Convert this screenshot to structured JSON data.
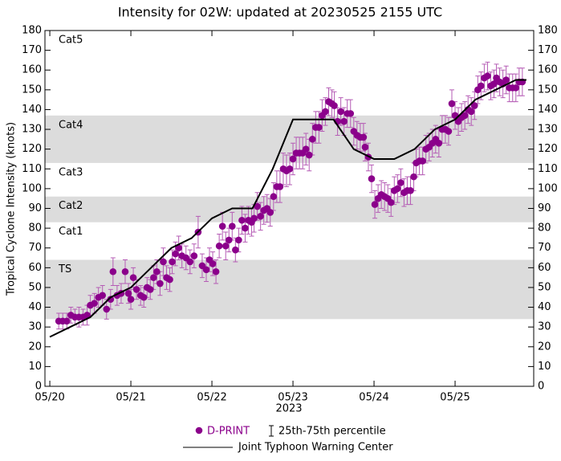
{
  "chart_data": {
    "type": "scatter",
    "title": "Intensity for 02W: updated at 20230525 2155 UTC",
    "xlabel": "2023",
    "ylabel": "Tropical Cyclone Intensity (knots)",
    "xlim": [
      -0.06,
      5.97
    ],
    "xticks": [
      {
        "value": 0,
        "label": "05/20"
      },
      {
        "value": 1,
        "label": "05/21"
      },
      {
        "value": 2,
        "label": "05/22"
      },
      {
        "value": 3,
        "label": "05/23"
      },
      {
        "value": 4,
        "label": "05/24"
      },
      {
        "value": 5,
        "label": "05/25"
      }
    ],
    "ylim": [
      0,
      180
    ],
    "yticks": [
      0,
      10,
      20,
      30,
      40,
      50,
      60,
      70,
      80,
      90,
      100,
      110,
      120,
      130,
      140,
      150,
      160,
      170,
      180
    ],
    "bands": [
      {
        "label": "TS",
        "min": 34,
        "max": 64,
        "shaded": true
      },
      {
        "label": "Cat1",
        "min": 64,
        "max": 83,
        "shaded": false
      },
      {
        "label": "Cat2",
        "min": 83,
        "max": 96,
        "shaded": true
      },
      {
        "label": "Cat3",
        "min": 96,
        "max": 113,
        "shaded": false
      },
      {
        "label": "Cat4",
        "min": 113,
        "max": 137,
        "shaded": true
      },
      {
        "label": "Cat5",
        "min": 137,
        "shaded": false
      }
    ],
    "error_label": "25th-75th percentile",
    "series": [
      {
        "name": "D-PRINT",
        "type": "scatter",
        "color": "#8b008b",
        "error_color": "#b55cb5",
        "x": [
          0.11,
          0.16,
          0.21,
          0.26,
          0.31,
          0.36,
          0.41,
          0.46,
          0.5,
          0.55,
          0.6,
          0.65,
          0.7,
          0.75,
          0.78,
          0.83,
          0.88,
          0.93,
          0.97,
          1.0,
          1.03,
          1.07,
          1.12,
          1.16,
          1.2,
          1.24,
          1.28,
          1.32,
          1.36,
          1.4,
          1.44,
          1.48,
          1.51,
          1.55,
          1.59,
          1.63,
          1.68,
          1.73,
          1.78,
          1.83,
          1.88,
          1.93,
          1.97,
          2.01,
          2.05,
          2.09,
          2.13,
          2.17,
          2.21,
          2.25,
          2.29,
          2.33,
          2.37,
          2.41,
          2.45,
          2.49,
          2.52,
          2.56,
          2.6,
          2.64,
          2.68,
          2.72,
          2.76,
          2.8,
          2.84,
          2.88,
          2.92,
          2.96,
          3.0,
          3.04,
          3.08,
          3.12,
          3.16,
          3.2,
          3.24,
          3.28,
          3.32,
          3.36,
          3.4,
          3.44,
          3.48,
          3.51,
          3.55,
          3.59,
          3.63,
          3.67,
          3.71,
          3.75,
          3.79,
          3.83,
          3.87,
          3.89,
          3.93,
          3.97,
          4.01,
          4.05,
          4.09,
          4.13,
          4.17,
          4.21,
          4.25,
          4.29,
          4.33,
          4.37,
          4.41,
          4.45,
          4.49,
          4.52,
          4.56,
          4.6,
          4.64,
          4.68,
          4.72,
          4.76,
          4.8,
          4.84,
          4.88,
          4.92,
          4.96,
          5.0,
          5.04,
          5.08,
          5.12,
          5.16,
          5.2,
          5.24,
          5.28,
          5.32,
          5.36,
          5.4,
          5.44,
          5.48,
          5.51,
          5.55,
          5.59,
          5.63,
          5.67,
          5.71,
          5.75,
          5.79,
          5.83
        ],
        "values": [
          33,
          33,
          33,
          36,
          35,
          35,
          35,
          36,
          41,
          42,
          45,
          46,
          39,
          44,
          58,
          46,
          47,
          58,
          47,
          44,
          55,
          49,
          46,
          45,
          50,
          49,
          55,
          58,
          52,
          63,
          55,
          54,
          63,
          67,
          70,
          66,
          65,
          63,
          66,
          78,
          61,
          59,
          64,
          62,
          58,
          71,
          81,
          71,
          74,
          81,
          69,
          74,
          84,
          80,
          84,
          83,
          85,
          91,
          86,
          89,
          90,
          88,
          96,
          101,
          101,
          110,
          109,
          110,
          115,
          118,
          118,
          118,
          120,
          117,
          125,
          131,
          131,
          137,
          139,
          144,
          143,
          142,
          134,
          139,
          134,
          138,
          138,
          129,
          127,
          126,
          126,
          121,
          116,
          105,
          92,
          95,
          97,
          96,
          95,
          93,
          99,
          100,
          103,
          98,
          99,
          99,
          106,
          113,
          114,
          114,
          120,
          121,
          123,
          125,
          123,
          130,
          130,
          129,
          143,
          137,
          134,
          136,
          137,
          140,
          139,
          142,
          150,
          152,
          156,
          157,
          152,
          153,
          156,
          154,
          153,
          155,
          151,
          151,
          151,
          154,
          154
        ],
        "errors": [
          4,
          4,
          4,
          4,
          4,
          5,
          4,
          5,
          5,
          5,
          5,
          5,
          5,
          5,
          7,
          5,
          5,
          6,
          5,
          5,
          5,
          5,
          5,
          5,
          5,
          5,
          6,
          6,
          6,
          7,
          6,
          6,
          6,
          6,
          6,
          6,
          6,
          6,
          6,
          8,
          6,
          6,
          6,
          6,
          6,
          6,
          7,
          7,
          6,
          7,
          6,
          6,
          7,
          7,
          7,
          7,
          7,
          7,
          7,
          7,
          7,
          7,
          7,
          8,
          8,
          8,
          8,
          8,
          8,
          8,
          8,
          8,
          8,
          8,
          8,
          8,
          8,
          8,
          7,
          7,
          7,
          7,
          7,
          7,
          7,
          7,
          7,
          7,
          7,
          7,
          7,
          7,
          7,
          7,
          7,
          7,
          7,
          7,
          7,
          7,
          7,
          7,
          7,
          7,
          7,
          7,
          7,
          7,
          7,
          7,
          7,
          7,
          7,
          7,
          7,
          7,
          7,
          7,
          7,
          7,
          7,
          7,
          7,
          7,
          7,
          7,
          7,
          7,
          7,
          7,
          7,
          7,
          7,
          7,
          7,
          7,
          7,
          7,
          7,
          7,
          7
        ]
      },
      {
        "name": "Joint Typhoon Warning Center",
        "type": "line",
        "color": "#000000",
        "x": [
          0,
          0.25,
          0.5,
          0.75,
          1.0,
          1.25,
          1.5,
          1.75,
          2.0,
          2.25,
          2.5,
          2.75,
          3.0,
          3.25,
          3.5,
          3.75,
          4.0,
          4.25,
          4.5,
          4.75,
          5.0,
          5.25,
          5.5,
          5.75,
          5.88
        ],
        "values": [
          25,
          30,
          35,
          45,
          50,
          60,
          70,
          75,
          85,
          90,
          90,
          110,
          135,
          135,
          135,
          120,
          115,
          115,
          120,
          130,
          135,
          145,
          150,
          155,
          155
        ]
      }
    ]
  }
}
